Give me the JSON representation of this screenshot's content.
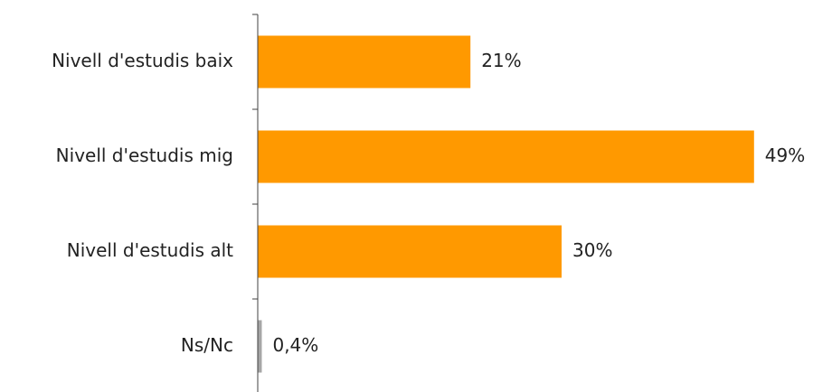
{
  "chart_data": {
    "type": "bar",
    "orientation": "horizontal",
    "categories": [
      "Nivell d'estudis baix",
      "Nivell d'estudis mig",
      "Nivell d'estudis alt",
      "Ns/Nc"
    ],
    "values": [
      21,
      49,
      30,
      0.4
    ],
    "value_labels": [
      "21%",
      "49%",
      "30%",
      "0,4%"
    ],
    "title": "",
    "xlabel": "",
    "ylabel": "",
    "xlim": [
      0,
      50
    ],
    "grid": false,
    "legend": "none",
    "colors": {
      "bar": "#FF9900",
      "bar_small": "#A6A6A6",
      "axis": "#404040",
      "text": "#222222"
    }
  }
}
